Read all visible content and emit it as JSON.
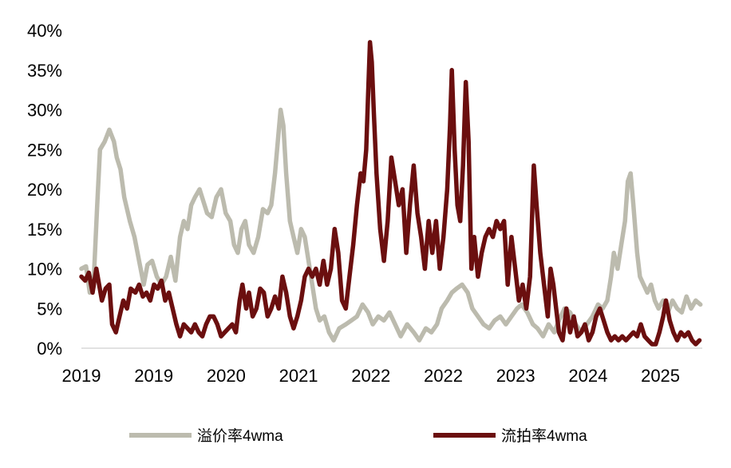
{
  "chart_data": {
    "type": "line",
    "title": "",
    "xlabel": "",
    "ylabel": "",
    "ylim": [
      0,
      40
    ],
    "y_ticks": [
      "0%",
      "5%",
      "10%",
      "15%",
      "20%",
      "25%",
      "30%",
      "35%",
      "40%"
    ],
    "x_ticks": [
      "2019",
      "2019",
      "2020",
      "2021",
      "2022",
      "2022",
      "2023",
      "2024",
      "2025"
    ],
    "xlim": [
      2019.0,
      2025.67
    ],
    "grid": false,
    "legend_position": "bottom",
    "series": [
      {
        "name": "溢价率4wma",
        "color": "#bcbbae",
        "points": [
          [
            2019.0,
            10
          ],
          [
            2019.05,
            10.3
          ],
          [
            2019.09,
            7
          ],
          [
            2019.13,
            8
          ],
          [
            2019.17,
            18
          ],
          [
            2019.2,
            25
          ],
          [
            2019.25,
            26
          ],
          [
            2019.3,
            27.5
          ],
          [
            2019.35,
            26
          ],
          [
            2019.38,
            24
          ],
          [
            2019.42,
            22.5
          ],
          [
            2019.46,
            19
          ],
          [
            2019.52,
            16
          ],
          [
            2019.57,
            14
          ],
          [
            2019.62,
            11
          ],
          [
            2019.67,
            8
          ],
          [
            2019.71,
            10.5
          ],
          [
            2019.76,
            11
          ],
          [
            2019.81,
            9
          ],
          [
            2019.86,
            8
          ],
          [
            2019.91,
            9
          ],
          [
            2019.96,
            11.5
          ],
          [
            2020.01,
            8.5
          ],
          [
            2020.06,
            14
          ],
          [
            2020.1,
            16
          ],
          [
            2020.14,
            15
          ],
          [
            2020.18,
            18
          ],
          [
            2020.22,
            19
          ],
          [
            2020.27,
            20
          ],
          [
            2020.31,
            18.5
          ],
          [
            2020.35,
            17
          ],
          [
            2020.4,
            16.5
          ],
          [
            2020.45,
            19
          ],
          [
            2020.5,
            20
          ],
          [
            2020.55,
            17
          ],
          [
            2020.6,
            16
          ],
          [
            2020.64,
            13
          ],
          [
            2020.68,
            12
          ],
          [
            2020.72,
            15
          ],
          [
            2020.76,
            16
          ],
          [
            2020.8,
            13
          ],
          [
            2020.85,
            12
          ],
          [
            2020.9,
            14
          ],
          [
            2020.95,
            17.5
          ],
          [
            2021.0,
            17
          ],
          [
            2021.04,
            18
          ],
          [
            2021.08,
            22
          ],
          [
            2021.11,
            26
          ],
          [
            2021.14,
            30
          ],
          [
            2021.17,
            28
          ],
          [
            2021.2,
            22
          ],
          [
            2021.24,
            16
          ],
          [
            2021.28,
            14
          ],
          [
            2021.32,
            12
          ],
          [
            2021.36,
            15
          ],
          [
            2021.4,
            14
          ],
          [
            2021.44,
            11
          ],
          [
            2021.48,
            8
          ],
          [
            2021.52,
            5
          ],
          [
            2021.56,
            3.5
          ],
          [
            2021.61,
            4
          ],
          [
            2021.66,
            2
          ],
          [
            2021.71,
            1
          ],
          [
            2021.77,
            2.5
          ],
          [
            2021.84,
            3
          ],
          [
            2021.9,
            3.5
          ],
          [
            2021.96,
            4
          ],
          [
            2022.02,
            5.5
          ],
          [
            2022.08,
            4.5
          ],
          [
            2022.13,
            3
          ],
          [
            2022.19,
            4
          ],
          [
            2022.25,
            3.5
          ],
          [
            2022.31,
            4.5
          ],
          [
            2022.37,
            3
          ],
          [
            2022.43,
            1.5
          ],
          [
            2022.5,
            3
          ],
          [
            2022.57,
            2
          ],
          [
            2022.63,
            1
          ],
          [
            2022.7,
            2.5
          ],
          [
            2022.76,
            2
          ],
          [
            2022.82,
            3
          ],
          [
            2022.87,
            5
          ],
          [
            2022.93,
            6
          ],
          [
            2022.98,
            7
          ],
          [
            2023.03,
            7.5
          ],
          [
            2023.09,
            8
          ],
          [
            2023.15,
            7
          ],
          [
            2023.2,
            5
          ],
          [
            2023.26,
            4
          ],
          [
            2023.32,
            3
          ],
          [
            2023.38,
            2.5
          ],
          [
            2023.44,
            3.5
          ],
          [
            2023.5,
            4
          ],
          [
            2023.56,
            3
          ],
          [
            2023.62,
            4
          ],
          [
            2023.68,
            5
          ],
          [
            2023.73,
            5.5
          ],
          [
            2023.79,
            4.5
          ],
          [
            2023.85,
            3
          ],
          [
            2023.9,
            2.5
          ],
          [
            2023.96,
            1.5
          ],
          [
            2024.02,
            3
          ],
          [
            2024.08,
            2
          ],
          [
            2024.13,
            3.5
          ],
          [
            2024.19,
            5
          ],
          [
            2024.25,
            4.5
          ],
          [
            2024.31,
            3
          ],
          [
            2024.37,
            2
          ],
          [
            2024.43,
            3
          ],
          [
            2024.49,
            4
          ],
          [
            2024.55,
            5.5
          ],
          [
            2024.6,
            5
          ],
          [
            2024.65,
            6
          ],
          [
            2024.69,
            9
          ],
          [
            2024.72,
            12
          ],
          [
            2024.76,
            10
          ],
          [
            2024.8,
            13
          ],
          [
            2024.84,
            16
          ],
          [
            2024.87,
            21
          ],
          [
            2024.9,
            22
          ],
          [
            2024.93,
            18
          ],
          [
            2024.97,
            12
          ],
          [
            2025.0,
            9
          ],
          [
            2025.04,
            8
          ],
          [
            2025.08,
            7
          ],
          [
            2025.12,
            8
          ],
          [
            2025.16,
            6
          ],
          [
            2025.2,
            5
          ],
          [
            2025.25,
            6
          ],
          [
            2025.3,
            4.5
          ],
          [
            2025.35,
            6
          ],
          [
            2025.4,
            5
          ],
          [
            2025.45,
            4.5
          ],
          [
            2025.5,
            6.5
          ],
          [
            2025.55,
            5
          ],
          [
            2025.6,
            6
          ],
          [
            2025.65,
            5.5
          ]
        ]
      },
      {
        "name": "流拍率4wma",
        "color": "#6b0f0f",
        "points": [
          [
            2019.0,
            9
          ],
          [
            2019.04,
            8.5
          ],
          [
            2019.08,
            9.5
          ],
          [
            2019.12,
            7
          ],
          [
            2019.16,
            10
          ],
          [
            2019.19,
            8
          ],
          [
            2019.22,
            6
          ],
          [
            2019.26,
            7.5
          ],
          [
            2019.3,
            8
          ],
          [
            2019.33,
            3
          ],
          [
            2019.37,
            2
          ],
          [
            2019.41,
            4
          ],
          [
            2019.45,
            6
          ],
          [
            2019.49,
            5
          ],
          [
            2019.53,
            7.5
          ],
          [
            2019.58,
            7
          ],
          [
            2019.62,
            8
          ],
          [
            2019.66,
            6.5
          ],
          [
            2019.7,
            7
          ],
          [
            2019.74,
            6
          ],
          [
            2019.78,
            8
          ],
          [
            2019.82,
            7.5
          ],
          [
            2019.86,
            8.5
          ],
          [
            2019.9,
            6
          ],
          [
            2019.94,
            7
          ],
          [
            2019.98,
            5
          ],
          [
            2020.02,
            3
          ],
          [
            2020.06,
            1.5
          ],
          [
            2020.1,
            3
          ],
          [
            2020.14,
            2.5
          ],
          [
            2020.18,
            2
          ],
          [
            2020.22,
            3
          ],
          [
            2020.26,
            2
          ],
          [
            2020.3,
            1.5
          ],
          [
            2020.34,
            3
          ],
          [
            2020.38,
            4
          ],
          [
            2020.42,
            4
          ],
          [
            2020.46,
            3
          ],
          [
            2020.5,
            1.5
          ],
          [
            2020.54,
            2
          ],
          [
            2020.58,
            2.5
          ],
          [
            2020.62,
            3
          ],
          [
            2020.66,
            2
          ],
          [
            2020.7,
            6
          ],
          [
            2020.73,
            8
          ],
          [
            2020.77,
            5
          ],
          [
            2020.8,
            7
          ],
          [
            2020.84,
            4
          ],
          [
            2020.88,
            5
          ],
          [
            2020.92,
            7.5
          ],
          [
            2020.96,
            7
          ],
          [
            2021.0,
            4
          ],
          [
            2021.04,
            5
          ],
          [
            2021.08,
            6.5
          ],
          [
            2021.12,
            5
          ],
          [
            2021.16,
            9
          ],
          [
            2021.2,
            7
          ],
          [
            2021.24,
            4
          ],
          [
            2021.28,
            2.5
          ],
          [
            2021.32,
            4
          ],
          [
            2021.36,
            6
          ],
          [
            2021.4,
            9
          ],
          [
            2021.44,
            10
          ],
          [
            2021.48,
            9
          ],
          [
            2021.52,
            10
          ],
          [
            2021.56,
            8
          ],
          [
            2021.6,
            11
          ],
          [
            2021.64,
            8
          ],
          [
            2021.68,
            10
          ],
          [
            2021.72,
            15
          ],
          [
            2021.76,
            12
          ],
          [
            2021.8,
            6
          ],
          [
            2021.84,
            5
          ],
          [
            2021.88,
            9
          ],
          [
            2021.92,
            13
          ],
          [
            2021.96,
            18
          ],
          [
            2022.0,
            22
          ],
          [
            2022.03,
            21
          ],
          [
            2022.06,
            25
          ],
          [
            2022.08,
            32
          ],
          [
            2022.1,
            38.5
          ],
          [
            2022.12,
            36
          ],
          [
            2022.14,
            30
          ],
          [
            2022.17,
            22
          ],
          [
            2022.21,
            15
          ],
          [
            2022.25,
            11
          ],
          [
            2022.29,
            16
          ],
          [
            2022.33,
            24
          ],
          [
            2022.37,
            21
          ],
          [
            2022.41,
            18
          ],
          [
            2022.45,
            20
          ],
          [
            2022.49,
            12
          ],
          [
            2022.53,
            18
          ],
          [
            2022.57,
            23
          ],
          [
            2022.61,
            17
          ],
          [
            2022.65,
            14
          ],
          [
            2022.69,
            10
          ],
          [
            2022.73,
            16
          ],
          [
            2022.77,
            12
          ],
          [
            2022.81,
            16
          ],
          [
            2022.85,
            10
          ],
          [
            2022.89,
            14
          ],
          [
            2022.93,
            20
          ],
          [
            2022.96,
            28
          ],
          [
            2022.98,
            35
          ],
          [
            2023.01,
            25
          ],
          [
            2023.04,
            18
          ],
          [
            2023.07,
            16
          ],
          [
            2023.1,
            23
          ],
          [
            2023.13,
            33.5
          ],
          [
            2023.16,
            26
          ],
          [
            2023.19,
            10
          ],
          [
            2023.22,
            14
          ],
          [
            2023.26,
            9
          ],
          [
            2023.3,
            12
          ],
          [
            2023.34,
            14
          ],
          [
            2023.38,
            15
          ],
          [
            2023.42,
            14
          ],
          [
            2023.46,
            16
          ],
          [
            2023.5,
            15
          ],
          [
            2023.54,
            16
          ],
          [
            2023.58,
            8
          ],
          [
            2023.62,
            14
          ],
          [
            2023.66,
            10
          ],
          [
            2023.7,
            6
          ],
          [
            2023.74,
            8
          ],
          [
            2023.78,
            5
          ],
          [
            2023.82,
            9
          ],
          [
            2023.86,
            23
          ],
          [
            2023.89,
            18
          ],
          [
            2023.93,
            12
          ],
          [
            2023.97,
            8
          ],
          [
            2024.01,
            4
          ],
          [
            2024.04,
            10
          ],
          [
            2024.07,
            8
          ],
          [
            2024.1,
            5
          ],
          [
            2024.13,
            2
          ],
          [
            2024.17,
            1
          ],
          [
            2024.21,
            5
          ],
          [
            2024.25,
            2
          ],
          [
            2024.29,
            4
          ],
          [
            2024.33,
            1.5
          ],
          [
            2024.37,
            2
          ],
          [
            2024.41,
            3
          ],
          [
            2024.45,
            1
          ],
          [
            2024.49,
            2
          ],
          [
            2024.53,
            4
          ],
          [
            2024.57,
            5
          ],
          [
            2024.61,
            3.5
          ],
          [
            2024.65,
            2
          ],
          [
            2024.69,
            1
          ],
          [
            2024.73,
            1.5
          ],
          [
            2024.77,
            1
          ],
          [
            2024.81,
            1.5
          ],
          [
            2024.85,
            1
          ],
          [
            2024.89,
            1.5
          ],
          [
            2024.93,
            2
          ],
          [
            2024.97,
            1.5
          ],
          [
            2025.01,
            3
          ],
          [
            2025.05,
            1.5
          ],
          [
            2025.09,
            1
          ],
          [
            2025.13,
            0.5
          ],
          [
            2025.17,
            0.5
          ],
          [
            2025.21,
            2
          ],
          [
            2025.25,
            4
          ],
          [
            2025.28,
            6
          ],
          [
            2025.32,
            3.5
          ],
          [
            2025.36,
            2
          ],
          [
            2025.4,
            1
          ],
          [
            2025.44,
            2
          ],
          [
            2025.48,
            1.5
          ],
          [
            2025.52,
            2
          ],
          [
            2025.56,
            1
          ],
          [
            2025.6,
            0.5
          ],
          [
            2025.64,
            1
          ]
        ]
      }
    ]
  }
}
